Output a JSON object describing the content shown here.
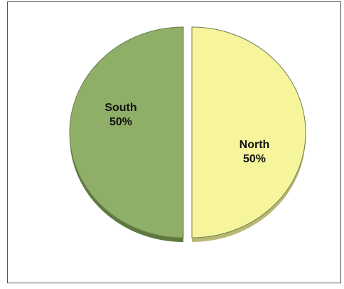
{
  "chart_data": {
    "type": "pie",
    "title": "",
    "legend": "none",
    "style": "3d-exploded",
    "slices": [
      {
        "label": "South",
        "value": 50,
        "value_label": "50%",
        "color": "#8fae68",
        "side_color": "#5d7a3e"
      },
      {
        "label": "North",
        "value": 50,
        "value_label": "50%",
        "color": "#f6f59c",
        "side_color": "#b9b873"
      }
    ]
  }
}
